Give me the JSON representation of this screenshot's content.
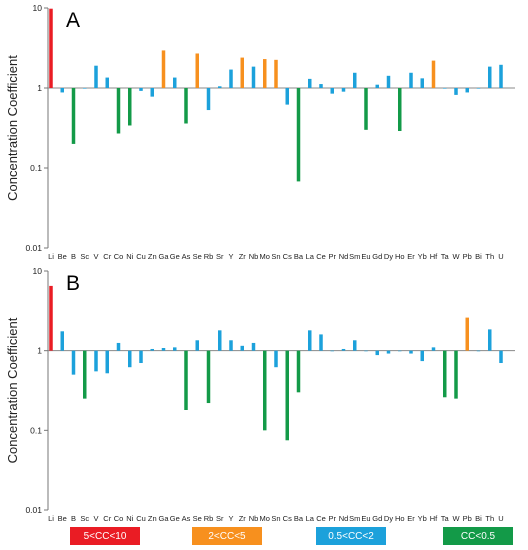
{
  "colors": {
    "range_5_10": "#ea1c24",
    "range_2_5": "#f7901e",
    "range_05_2": "#1ca1db",
    "range_lt_05": "#139a48"
  },
  "legend": [
    {
      "label": "5<CC<10",
      "color": "#ea1c24"
    },
    {
      "label": "2<CC<5",
      "color": "#f7901e"
    },
    {
      "label": "0.5<CC<2",
      "color": "#1ca1db"
    },
    {
      "label": "CC<0.5",
      "color": "#139a48"
    }
  ],
  "chart_data": [
    {
      "type": "bar",
      "panel_label": "A",
      "ylabel": "Concentration Coefficient",
      "yscale": "log",
      "ylim": [
        0.01,
        10
      ],
      "yticks": [
        "0.01",
        "0.1",
        "1",
        "10"
      ],
      "baseline": 1,
      "categories": [
        "Li",
        "Be",
        "B",
        "Sc",
        "V",
        "Cr",
        "Co",
        "Ni",
        "Cu",
        "Zn",
        "Ga",
        "Ge",
        "As",
        "Se",
        "Rb",
        "Sr",
        "Y",
        "Zr",
        "Nb",
        "Mo",
        "Sn",
        "Cs",
        "Ba",
        "La",
        "Ce",
        "Pr",
        "Nd",
        "Sm",
        "Eu",
        "Gd",
        "Dy",
        "Ho",
        "Er",
        "Yb",
        "Hf",
        "Ta",
        "W",
        "Pb",
        "Bi",
        "Th",
        "U"
      ],
      "values": [
        9.8,
        0.88,
        0.2,
        1,
        1.9,
        1.35,
        0.27,
        0.34,
        0.92,
        0.78,
        2.95,
        1.35,
        0.36,
        2.7,
        0.53,
        1.05,
        1.7,
        2.4,
        1.85,
        2.3,
        2.25,
        0.62,
        0.068,
        1.3,
        1.12,
        0.85,
        0.9,
        1.55,
        0.3,
        1.1,
        1.42,
        0.29,
        1.55,
        1.32,
        2.2,
        1,
        0.82,
        0.88,
        1,
        1.85,
        1.95
      ]
    },
    {
      "type": "bar",
      "panel_label": "B",
      "ylabel": "Concentration Coefficient",
      "yscale": "log",
      "ylim": [
        0.01,
        10
      ],
      "yticks": [
        "0.01",
        "0.1",
        "1",
        "10"
      ],
      "baseline": 1,
      "categories": [
        "Li",
        "Be",
        "B",
        "Sc",
        "V",
        "Cr",
        "Co",
        "Ni",
        "Cu",
        "Zn",
        "Ga",
        "Ge",
        "As",
        "Se",
        "Rb",
        "Sr",
        "Y",
        "Zr",
        "Nb",
        "Mo",
        "Sn",
        "Cs",
        "Ba",
        "La",
        "Ce",
        "Pr",
        "Nd",
        "Sm",
        "Eu",
        "Gd",
        "Dy",
        "Ho",
        "Er",
        "Yb",
        "Hf",
        "Ta",
        "W",
        "Pb",
        "Bi",
        "Th",
        "U"
      ],
      "values": [
        6.5,
        1.75,
        0.5,
        0.25,
        0.55,
        0.52,
        1.25,
        0.62,
        0.7,
        1.05,
        1.08,
        1.1,
        0.18,
        1.35,
        0.22,
        1.8,
        1.35,
        1.15,
        1.25,
        0.1,
        0.62,
        0.075,
        0.3,
        1.8,
        1.6,
        1,
        1.05,
        1.35,
        1,
        0.88,
        0.92,
        1,
        0.92,
        0.74,
        1.1,
        0.26,
        0.25,
        2.6,
        1,
        1.85,
        0.7
      ]
    }
  ]
}
